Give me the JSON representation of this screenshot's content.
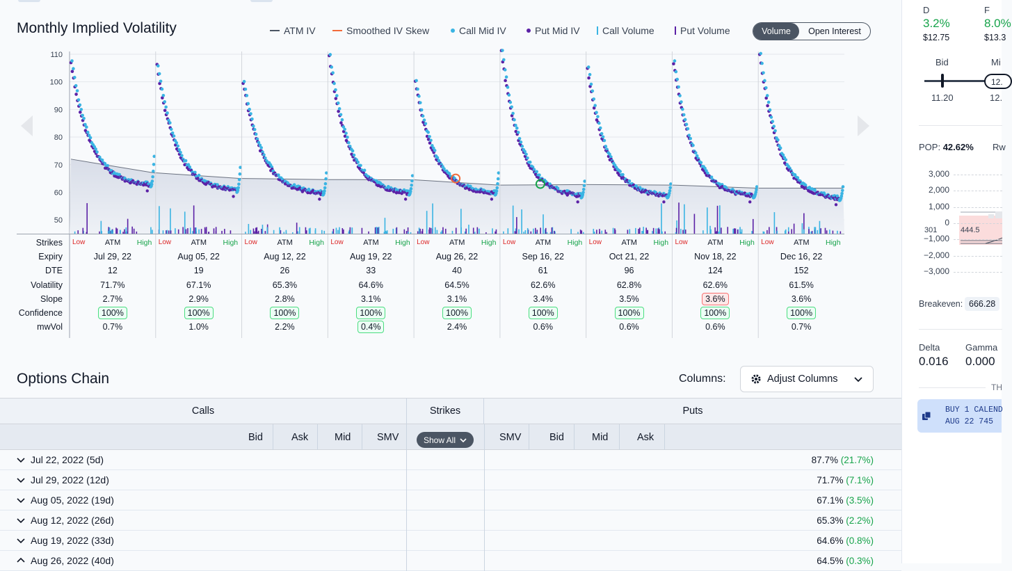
{
  "chart_data": {
    "type": "scatter",
    "title": "Monthly Implied Volatility",
    "legend": [
      "ATM IV",
      "Smoothed IV Skew",
      "Call Mid IV",
      "Put Mid IV",
      "Call Volume",
      "Put Volume"
    ],
    "toggle": {
      "active": "Volume",
      "inactive": "Open Interest"
    },
    "yticks": [
      50,
      60,
      70,
      80,
      90,
      100,
      110
    ],
    "ylim": [
      45,
      111
    ],
    "expiries": [
      {
        "expiry": "Jul 29, 22",
        "dte": "12",
        "volatility": "71.7%",
        "slope": "2.7%",
        "confidence": "100%",
        "mwvol": "0.7%",
        "atm_iv": 72,
        "min_iv": 62,
        "max_call": 107,
        "max_put": 107,
        "right_end": 73
      },
      {
        "expiry": "Aug 05, 22",
        "dte": "19",
        "volatility": "67.1%",
        "slope": "2.9%",
        "confidence": "100%",
        "mwvol": "1.0%",
        "atm_iv": 67,
        "min_iv": 60,
        "max_call": 106,
        "max_put": 106,
        "right_end": 69
      },
      {
        "expiry": "Aug 12, 22",
        "dte": "26",
        "volatility": "65.3%",
        "slope": "2.8%",
        "confidence": "100%",
        "mwvol": "2.2%",
        "atm_iv": 65,
        "min_iv": 59,
        "max_call": 100,
        "max_put": 100,
        "right_end": 67
      },
      {
        "expiry": "Aug 19, 22",
        "dte": "33",
        "volatility": "64.6%",
        "slope": "3.1%",
        "confidence": "100%",
        "mwvol": "0.4%",
        "atm_iv": 64.6,
        "min_iv": 59,
        "max_call": 109,
        "max_put": 109,
        "right_end": 66
      },
      {
        "expiry": "Aug 26, 22",
        "dte": "40",
        "volatility": "64.5%",
        "slope": "3.1%",
        "confidence": "100%",
        "mwvol": "2.4%",
        "atm_iv": 64.5,
        "min_iv": 59,
        "max_call": 100,
        "max_put": 100,
        "right_end": 67
      },
      {
        "expiry": "Sep 16, 22",
        "dte": "61",
        "volatility": "62.6%",
        "slope": "3.4%",
        "confidence": "100%",
        "mwvol": "0.6%",
        "atm_iv": 62.6,
        "min_iv": 58,
        "max_call": 111,
        "max_put": 111,
        "right_end": 64
      },
      {
        "expiry": "Oct 21, 22",
        "dte": "96",
        "volatility": "62.8%",
        "slope": "3.5%",
        "confidence": "100%",
        "mwvol": "0.6%",
        "atm_iv": 62.8,
        "min_iv": 58,
        "max_call": 105,
        "max_put": 105,
        "right_end": 63
      },
      {
        "expiry": "Nov 18, 22",
        "dte": "124",
        "volatility": "62.6%",
        "slope": "3.6%",
        "confidence": "100%",
        "mwvol": "0.6%",
        "atm_iv": 62.6,
        "min_iv": 58,
        "max_call": 107,
        "max_put": 107,
        "right_end": 62
      },
      {
        "expiry": "Dec 16, 22",
        "dte": "152",
        "volatility": "61.5%",
        "slope": "3.6%",
        "confidence": "100%",
        "mwvol": "0.7%",
        "atm_iv": 61.5,
        "min_iv": 57,
        "max_call": 110,
        "max_put": 110,
        "right_end": 62
      }
    ],
    "slope_flagged_index": 7,
    "mwvol_flagged_index": 3
  },
  "stats_labels": {
    "strikes": "Strikes",
    "expiry": "Expiry",
    "dte": "DTE",
    "volatility": "Volatility",
    "slope": "Slope",
    "confidence": "Confidence",
    "mwvol": "mwVol",
    "low": "Low",
    "atm": "ATM",
    "high": "High"
  },
  "options_chain": {
    "title": "Options Chain",
    "columns_label": "Columns:",
    "adjust_label": "Adjust Columns",
    "calls_header": "Calls",
    "strikes_header": "Strikes",
    "puts_header": "Puts",
    "call_cols": [
      "Bid",
      "Ask",
      "Mid",
      "SMV"
    ],
    "put_cols": [
      "SMV",
      "Bid",
      "Mid",
      "Ask"
    ],
    "show_all": "Show All",
    "rows": [
      {
        "label": "Jul 22, 2022 (5d)",
        "iv": "87.7%",
        "chg": "(21.7%)"
      },
      {
        "label": "Jul 29, 2022 (12d)",
        "iv": "71.7%",
        "chg": "(7.1%)"
      },
      {
        "label": "Aug 05, 2022 (19d)",
        "iv": "67.1%",
        "chg": "(3.5%)"
      },
      {
        "label": "Aug 12, 2022 (26d)",
        "iv": "65.3%",
        "chg": "(2.2%)"
      },
      {
        "label": "Aug 19, 2022 (33d)",
        "iv": "64.6%",
        "chg": "(0.8%)"
      },
      {
        "label": "Aug 26, 2022 (40d)",
        "iv": "64.5%",
        "chg": "(0.3%)"
      }
    ]
  },
  "right_panel": {
    "d_label": "D",
    "d_pct": "3.2%",
    "d_price": "$12.75",
    "f_label": "F",
    "f_pct": "8.0%",
    "f_price": "$13.3",
    "bid_label": "Bid",
    "mid_label": "Mi",
    "bid_value": "11.20",
    "mid_chip": "12.",
    "mid_value": "12.",
    "pop_label": "POP:",
    "pop_value": "42.62%",
    "rw_label": "Rw",
    "pnl_ticks": [
      "3,000",
      "2,000",
      "1,000",
      "0",
      "−1,000",
      "−2,000",
      "−3,000"
    ],
    "pnl_x1": "301",
    "pnl_x2": "444.5",
    "breakeven_label": "Breakeven:",
    "breakeven_value": "666.28",
    "delta_label": "Delta",
    "delta_value": "0.016",
    "gamma_label": "Gamma",
    "gamma_value": "0.000",
    "th_label": "TH",
    "order_line1": "BUY 1 CALEND",
    "order_line2": "AUG 22 745 "
  },
  "colors": {
    "call": "#3ab4e3",
    "put": "#5b21a6",
    "atm": "#6b7280",
    "skew": "#f26b3a"
  }
}
